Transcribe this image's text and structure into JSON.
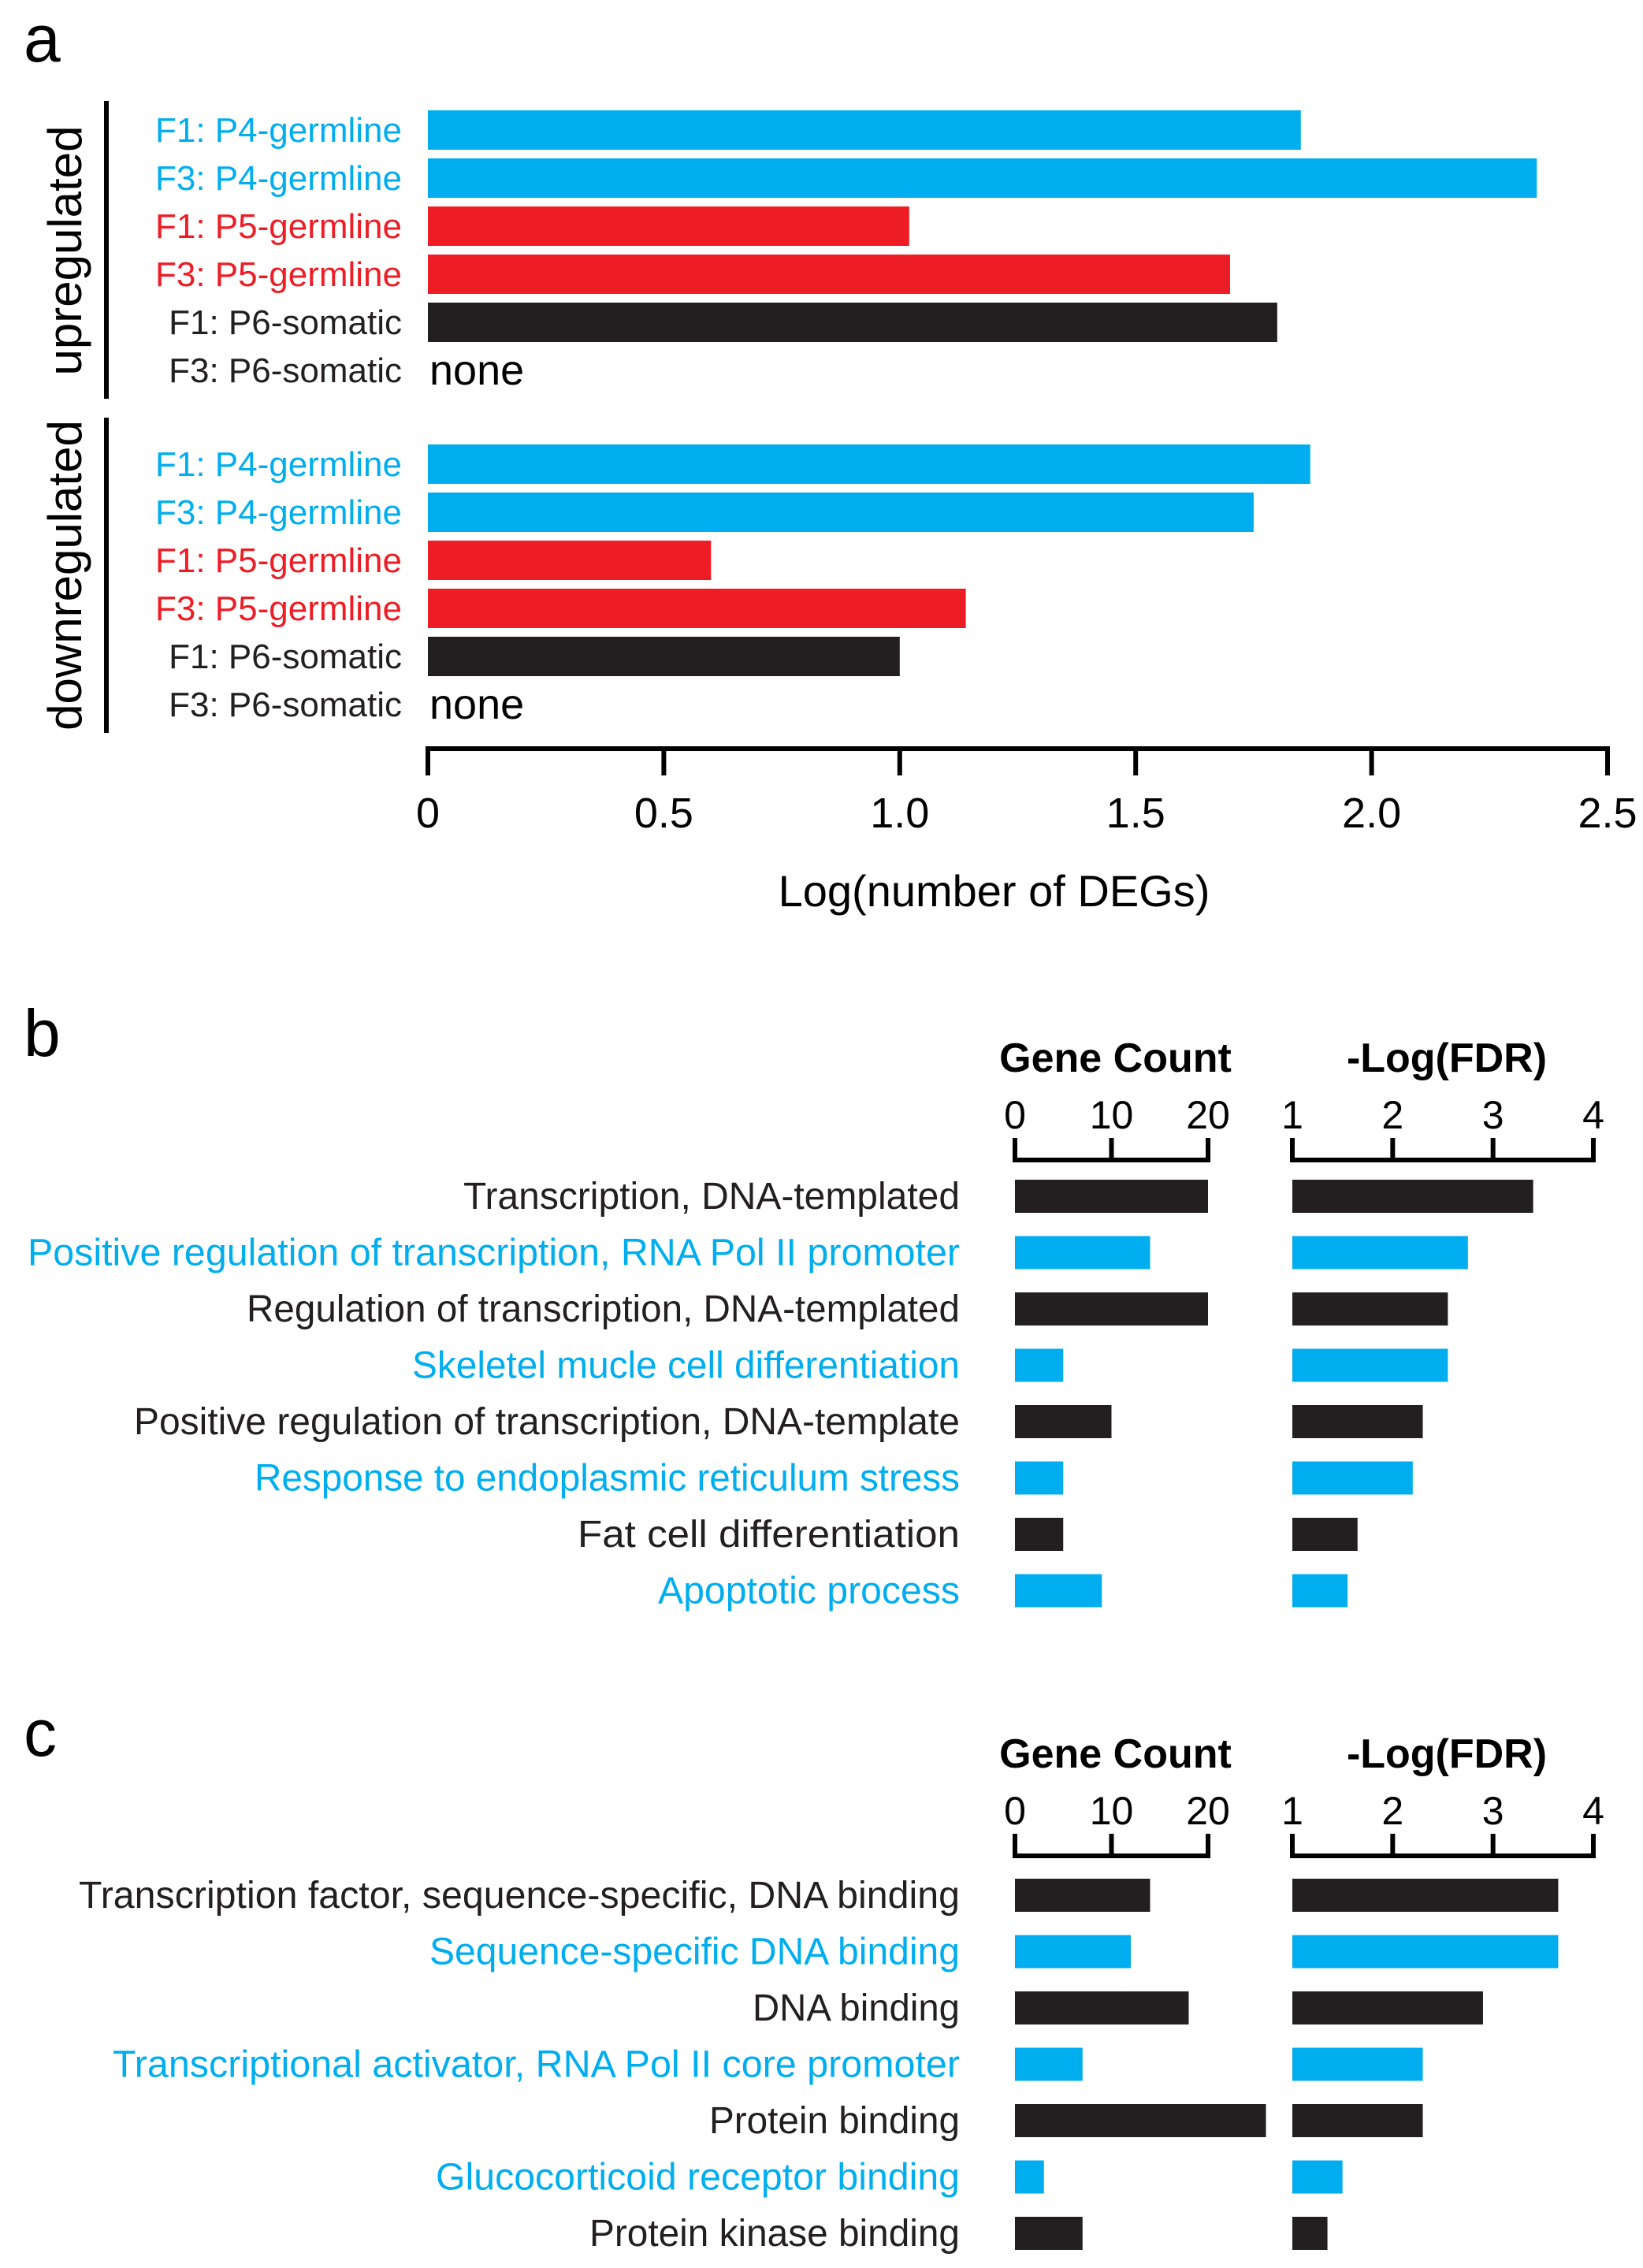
{
  "colors": {
    "blue": "#00aeef",
    "red": "#ee1c25",
    "black": "#231f20"
  },
  "chart_data": [
    {
      "panel": "a",
      "type": "bar",
      "orientation": "horizontal",
      "xlabel": "Log(number of DEGs)",
      "xlim": [
        0,
        2.5
      ],
      "xticks": [
        "0",
        "0.5",
        "1.0",
        "1.5",
        "2.0",
        "2.5"
      ],
      "groups": [
        {
          "name": "upregulated",
          "rows": [
            {
              "label": "F1: P4-germline",
              "value": 1.85,
              "color": "blue"
            },
            {
              "label": "F3: P4-germline",
              "value": 2.35,
              "color": "blue"
            },
            {
              "label": "F1: P5-germline",
              "value": 1.02,
              "color": "red"
            },
            {
              "label": "F3: P5-germline",
              "value": 1.7,
              "color": "red"
            },
            {
              "label": "F1: P6-somatic",
              "value": 1.8,
              "color": "black"
            },
            {
              "label": "F3: P6-somatic",
              "value": null,
              "note": "none",
              "color": "black"
            }
          ]
        },
        {
          "name": "downregulated",
          "rows": [
            {
              "label": "F1: P4-germline",
              "value": 1.87,
              "color": "blue"
            },
            {
              "label": "F3: P4-germline",
              "value": 1.75,
              "color": "blue"
            },
            {
              "label": "F1: P5-germline",
              "value": 0.6,
              "color": "red"
            },
            {
              "label": "F3: P5-germline",
              "value": 1.14,
              "color": "red"
            },
            {
              "label": "F1: P6-somatic",
              "value": 1.0,
              "color": "black"
            },
            {
              "label": "F3: P6-somatic",
              "value": null,
              "note": "none",
              "color": "black"
            }
          ]
        }
      ]
    },
    {
      "panel": "b",
      "type": "bar",
      "orientation": "horizontal",
      "gene_count_axis": {
        "title": "Gene Count",
        "range": [
          0,
          20
        ],
        "ticks": [
          "0",
          "10",
          "20"
        ]
      },
      "fdr_axis": {
        "title": "-Log(FDR)",
        "range": [
          1,
          4
        ],
        "ticks": [
          "1",
          "2",
          "3",
          "4"
        ]
      },
      "terms": [
        {
          "label": "Transcription, DNA-templated",
          "gene_count": 20,
          "neg_log_fdr": 3.4,
          "color": "black"
        },
        {
          "label": "Positive regulation of transcription, RNA  Pol II promoter",
          "gene_count": 14,
          "neg_log_fdr": 2.75,
          "color": "blue"
        },
        {
          "label": "Regulation of transcription, DNA-templated",
          "gene_count": 20,
          "neg_log_fdr": 2.55,
          "color": "black"
        },
        {
          "label": "Skeletel mucle cell differentiation",
          "gene_count": 5,
          "neg_log_fdr": 2.55,
          "color": "blue"
        },
        {
          "label": "Positive regulation of transcription, DNA-template",
          "gene_count": 10,
          "neg_log_fdr": 2.3,
          "color": "black"
        },
        {
          "label": "Response to endoplasmic reticulum stress",
          "gene_count": 5,
          "neg_log_fdr": 2.2,
          "color": "blue"
        },
        {
          "label": "Fat cell differentiation",
          "gene_count": 5,
          "neg_log_fdr": 1.65,
          "color": "black"
        },
        {
          "label": "Apoptotic process",
          "gene_count": 9,
          "neg_log_fdr": 1.55,
          "color": "blue"
        }
      ]
    },
    {
      "panel": "c",
      "type": "bar",
      "orientation": "horizontal",
      "gene_count_axis": {
        "title": "Gene Count",
        "range": [
          0,
          20
        ],
        "ticks": [
          "0",
          "10",
          "20"
        ]
      },
      "fdr_axis": {
        "title": "-Log(FDR)",
        "range": [
          1,
          4
        ],
        "ticks": [
          "1",
          "2",
          "3",
          "4"
        ]
      },
      "terms": [
        {
          "label": "Transcription factor, sequence-specific, DNA binding",
          "gene_count": 14,
          "neg_log_fdr": 3.65,
          "color": "black"
        },
        {
          "label": "Sequence-specific DNA binding",
          "gene_count": 12,
          "neg_log_fdr": 3.65,
          "color": "blue"
        },
        {
          "label": "DNA binding",
          "gene_count": 18,
          "neg_log_fdr": 2.9,
          "color": "black"
        },
        {
          "label": "Transcriptional activator, RNA Pol II core promoter",
          "gene_count": 7,
          "neg_log_fdr": 2.3,
          "color": "blue"
        },
        {
          "label": "Protein binding",
          "gene_count": 26,
          "neg_log_fdr": 2.3,
          "color": "black"
        },
        {
          "label": "Glucocorticoid receptor binding",
          "gene_count": 3,
          "neg_log_fdr": 1.5,
          "color": "blue"
        },
        {
          "label": "Protein kinase binding",
          "gene_count": 7,
          "neg_log_fdr": 1.35,
          "color": "black"
        }
      ]
    }
  ],
  "panel_letters": [
    "a",
    "b",
    "c"
  ]
}
